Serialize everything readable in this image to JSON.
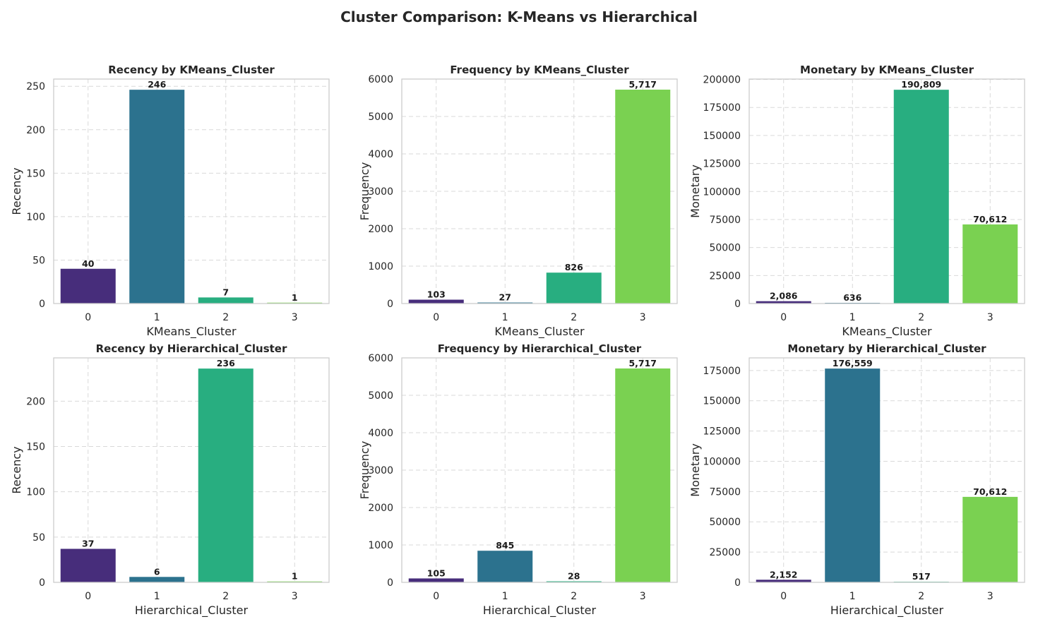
{
  "figure": {
    "title": "Cluster Comparison: K-Means vs Hierarchical"
  },
  "colors": [
    "#472d7b",
    "#2c728e",
    "#28ae80",
    "#7ad151"
  ],
  "chart_data": [
    {
      "type": "bar",
      "title": "Recency by KMeans_Cluster",
      "xlabel": "KMeans_Cluster",
      "ylabel": "Recency",
      "categories": [
        "0",
        "1",
        "2",
        "3"
      ],
      "values": [
        40,
        246,
        7,
        1
      ],
      "labels": [
        "40",
        "246",
        "7",
        "1"
      ],
      "ylim": [
        0,
        258.3
      ],
      "yticks": [
        0,
        50,
        100,
        150,
        200,
        250
      ],
      "ytick_labels": [
        "0",
        "50",
        "100",
        "150",
        "200",
        "250"
      ],
      "grid": true
    },
    {
      "type": "bar",
      "title": "Frequency by KMeans_Cluster",
      "xlabel": "KMeans_Cluster",
      "ylabel": "Frequency",
      "categories": [
        "0",
        "1",
        "2",
        "3"
      ],
      "values": [
        103,
        27,
        826,
        5717
      ],
      "labels": [
        "103",
        "27",
        "826",
        "5,717"
      ],
      "ylim": [
        0,
        6000
      ],
      "yticks": [
        0,
        1000,
        2000,
        3000,
        4000,
        5000,
        6000
      ],
      "ytick_labels": [
        "0",
        "1000",
        "2000",
        "3000",
        "4000",
        "5000",
        "6000"
      ],
      "grid": true
    },
    {
      "type": "bar",
      "title": "Monetary by KMeans_Cluster",
      "xlabel": "KMeans_Cluster",
      "ylabel": "Monetary",
      "categories": [
        "0",
        "1",
        "2",
        "3"
      ],
      "values": [
        2086,
        636,
        190809,
        70612
      ],
      "labels": [
        "2,086",
        "636",
        "190,809",
        "70,612"
      ],
      "ylim": [
        0,
        200349
      ],
      "yticks": [
        0,
        25000,
        50000,
        75000,
        100000,
        125000,
        150000,
        175000,
        200000
      ],
      "ytick_labels": [
        "0",
        "25000",
        "50000",
        "75000",
        "100000",
        "125000",
        "150000",
        "175000",
        "200000"
      ],
      "grid": true
    },
    {
      "type": "bar",
      "title": "Recency by Hierarchical_Cluster",
      "xlabel": "Hierarchical_Cluster",
      "ylabel": "Recency",
      "categories": [
        "0",
        "1",
        "2",
        "3"
      ],
      "values": [
        37,
        6,
        236,
        1
      ],
      "labels": [
        "37",
        "6",
        "236",
        "1"
      ],
      "ylim": [
        0,
        247.8
      ],
      "yticks": [
        0,
        50,
        100,
        150,
        200
      ],
      "ytick_labels": [
        "0",
        "50",
        "100",
        "150",
        "200"
      ],
      "grid": true
    },
    {
      "type": "bar",
      "title": "Frequency by Hierarchical_Cluster",
      "xlabel": "Hierarchical_Cluster",
      "ylabel": "Frequency",
      "categories": [
        "0",
        "1",
        "2",
        "3"
      ],
      "values": [
        105,
        845,
        28,
        5717
      ],
      "labels": [
        "105",
        "845",
        "28",
        "5,717"
      ],
      "ylim": [
        0,
        6000
      ],
      "yticks": [
        0,
        1000,
        2000,
        3000,
        4000,
        5000,
        6000
      ],
      "ytick_labels": [
        "0",
        "1000",
        "2000",
        "3000",
        "4000",
        "5000",
        "6000"
      ],
      "grid": true
    },
    {
      "type": "bar",
      "title": "Monetary by Hierarchical_Cluster",
      "xlabel": "Hierarchical_Cluster",
      "ylabel": "Monetary",
      "categories": [
        "0",
        "1",
        "2",
        "3"
      ],
      "values": [
        2152,
        176559,
        517,
        70612
      ],
      "labels": [
        "2,152",
        "176,559",
        "517",
        "70,612"
      ],
      "ylim": [
        0,
        185387
      ],
      "yticks": [
        0,
        25000,
        50000,
        75000,
        100000,
        125000,
        150000,
        175000
      ],
      "ytick_labels": [
        "0",
        "25000",
        "50000",
        "75000",
        "100000",
        "125000",
        "150000",
        "175000"
      ],
      "grid": true
    }
  ]
}
